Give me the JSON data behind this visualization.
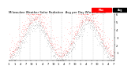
{
  "title": "Milwaukee Weather Solar Radiation  Avg per Day W/m2/minute",
  "title_fontsize": 2.8,
  "background_color": "#ffffff",
  "plot_bg_color": "#ffffff",
  "grid_color": "#bbbbbb",
  "dot_color_red": "#ff0000",
  "dot_color_black": "#000000",
  "legend_red_label": "Max",
  "legend_black_label": "Avg",
  "ylabel_fontsize": 2.5,
  "xlabel_fontsize": 2.5,
  "ymin": 0,
  "ymax": 6,
  "ytick_labels": [
    "1",
    "2",
    "3",
    "4",
    "5",
    "6"
  ],
  "ytick_values": [
    1,
    2,
    3,
    4,
    5,
    6
  ],
  "num_points": 730,
  "seed": 7,
  "vline_count": 9
}
